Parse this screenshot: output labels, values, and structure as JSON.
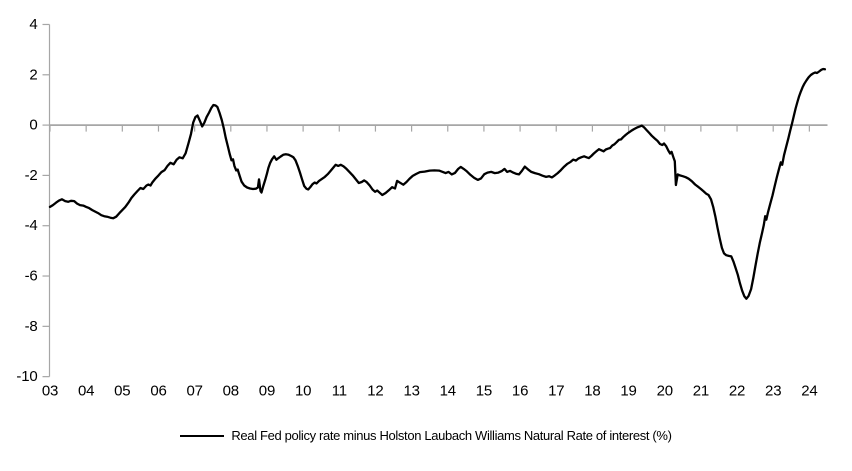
{
  "chart": {
    "legend_label": "Real Fed policy rate minus Holston Laubach Williams Natural Rate of interest (%)",
    "colors": {
      "line": "#000000",
      "axis": "#a6a6a6",
      "text": "#000000",
      "background": "#ffffff"
    },
    "y_axis": {
      "ticks": [
        4,
        2,
        0,
        -2,
        -4,
        -6,
        -8,
        -10
      ]
    },
    "x_axis": {
      "labels": [
        "03",
        "04",
        "05",
        "06",
        "07",
        "08",
        "09",
        "10",
        "11",
        "12",
        "13",
        "14",
        "15",
        "16",
        "17",
        "18",
        "19",
        "20",
        "21",
        "22",
        "23",
        "24"
      ]
    }
  },
  "chart_data": {
    "type": "line",
    "title": "",
    "xlabel": "",
    "ylabel": "",
    "xlim": [
      2003,
      2024.5
    ],
    "ylim": [
      -10,
      4
    ],
    "grid": "zero-line-only",
    "legend_position": "bottom-center",
    "series": [
      {
        "name": "Real Fed policy rate minus Holston Laubach Williams Natural Rate of interest (%)",
        "x": [
          2003.0,
          2003.08,
          2003.17,
          2003.25,
          2003.33,
          2003.42,
          2003.5,
          2003.58,
          2003.67,
          2003.75,
          2003.83,
          2003.92,
          2004.0,
          2004.08,
          2004.17,
          2004.25,
          2004.33,
          2004.42,
          2004.5,
          2004.58,
          2004.67,
          2004.75,
          2004.83,
          2004.92,
          2005.0,
          2005.08,
          2005.17,
          2005.25,
          2005.33,
          2005.42,
          2005.5,
          2005.58,
          2005.67,
          2005.72,
          2005.78,
          2005.83,
          2005.92,
          2006.0,
          2006.08,
          2006.17,
          2006.25,
          2006.33,
          2006.42,
          2006.5,
          2006.58,
          2006.67,
          2006.75,
          2006.83,
          2006.9,
          2006.96,
          2007.02,
          2007.08,
          2007.15,
          2007.21,
          2007.27,
          2007.33,
          2007.4,
          2007.46,
          2007.52,
          2007.58,
          2007.63,
          2007.69,
          2007.75,
          2007.81,
          2007.86,
          2007.92,
          2007.97,
          2008.02,
          2008.06,
          2008.1,
          2008.15,
          2008.19,
          2008.24,
          2008.3,
          2008.37,
          2008.45,
          2008.53,
          2008.61,
          2008.69,
          2008.75,
          2008.78,
          2008.82,
          2008.85,
          2008.9,
          2008.95,
          2009.0,
          2009.04,
          2009.09,
          2009.14,
          2009.2,
          2009.26,
          2009.31,
          2009.38,
          2009.45,
          2009.52,
          2009.6,
          2009.67,
          2009.73,
          2009.79,
          2009.85,
          2009.91,
          2009.97,
          2010.03,
          2010.09,
          2010.14,
          2010.2,
          2010.26,
          2010.32,
          2010.37,
          2010.44,
          2010.52,
          2010.6,
          2010.68,
          2010.76,
          2010.84,
          2010.9,
          2010.97,
          2011.04,
          2011.12,
          2011.2,
          2011.28,
          2011.37,
          2011.46,
          2011.54,
          2011.62,
          2011.69,
          2011.76,
          2011.84,
          2011.92,
          2011.99,
          2012.05,
          2012.12,
          2012.19,
          2012.28,
          2012.37,
          2012.46,
          2012.54,
          2012.6,
          2012.68,
          2012.77,
          2012.86,
          2012.94,
          2013.03,
          2013.13,
          2013.23,
          2013.36,
          2013.5,
          2013.63,
          2013.76,
          2013.86,
          2013.94,
          2014.02,
          2014.11,
          2014.2,
          2014.29,
          2014.36,
          2014.44,
          2014.53,
          2014.63,
          2014.73,
          2014.83,
          2014.92,
          2015.01,
          2015.1,
          2015.2,
          2015.3,
          2015.4,
          2015.5,
          2015.57,
          2015.64,
          2015.72,
          2015.81,
          2015.9,
          2015.97,
          2016.05,
          2016.13,
          2016.22,
          2016.31,
          2016.41,
          2016.52,
          2016.62,
          2016.72,
          2016.8,
          2016.88,
          2016.96,
          2017.04,
          2017.13,
          2017.22,
          2017.31,
          2017.4,
          2017.47,
          2017.54,
          2017.61,
          2017.69,
          2017.77,
          2017.84,
          2017.9,
          2017.97,
          2018.04,
          2018.11,
          2018.18,
          2018.25,
          2018.31,
          2018.37,
          2018.43,
          2018.49,
          2018.55,
          2018.61,
          2018.67,
          2018.73,
          2018.79,
          2018.85,
          2018.92,
          2018.99,
          2019.07,
          2019.15,
          2019.23,
          2019.31,
          2019.37,
          2019.43,
          2019.5,
          2019.57,
          2019.64,
          2019.72,
          2019.8,
          2019.87,
          2019.93,
          2019.98,
          2020.04,
          2020.1,
          2020.15,
          2020.19,
          2020.24,
          2020.28,
          2020.31,
          2020.36,
          2020.42,
          2020.5,
          2020.58,
          2020.66,
          2020.75,
          2020.84,
          2020.92,
          2021.0,
          2021.08,
          2021.15,
          2021.21,
          2021.28,
          2021.34,
          2021.4,
          2021.46,
          2021.52,
          2021.58,
          2021.64,
          2021.7,
          2021.77,
          2021.84,
          2021.9,
          2021.96,
          2022.02,
          2022.08,
          2022.14,
          2022.2,
          2022.26,
          2022.32,
          2022.39,
          2022.45,
          2022.51,
          2022.57,
          2022.63,
          2022.69,
          2022.74,
          2022.78,
          2022.81,
          2022.86,
          2022.92,
          2022.98,
          2023.04,
          2023.1,
          2023.16,
          2023.21,
          2023.25,
          2023.3,
          2023.36,
          2023.42,
          2023.47,
          2023.52,
          2023.57,
          2023.62,
          2023.67,
          2023.71,
          2023.76,
          2023.81,
          2023.86,
          2023.92,
          2023.98,
          2024.04,
          2024.1,
          2024.16,
          2024.21,
          2024.27,
          2024.33,
          2024.38,
          2024.43
        ],
        "y": [
          -3.25,
          -3.18,
          -3.08,
          -3.0,
          -2.95,
          -3.02,
          -3.05,
          -3.01,
          -3.02,
          -3.12,
          -3.18,
          -3.2,
          -3.25,
          -3.3,
          -3.38,
          -3.44,
          -3.5,
          -3.58,
          -3.62,
          -3.64,
          -3.68,
          -3.7,
          -3.64,
          -3.5,
          -3.38,
          -3.26,
          -3.08,
          -2.9,
          -2.76,
          -2.62,
          -2.5,
          -2.54,
          -2.4,
          -2.36,
          -2.4,
          -2.28,
          -2.12,
          -2.0,
          -1.87,
          -1.79,
          -1.62,
          -1.5,
          -1.56,
          -1.38,
          -1.28,
          -1.32,
          -1.12,
          -0.72,
          -0.35,
          0.1,
          0.32,
          0.38,
          0.15,
          -0.05,
          0.1,
          0.32,
          0.5,
          0.68,
          0.8,
          0.78,
          0.72,
          0.48,
          0.2,
          -0.15,
          -0.5,
          -0.85,
          -1.15,
          -1.4,
          -1.36,
          -1.62,
          -1.8,
          -1.77,
          -2.0,
          -2.25,
          -2.4,
          -2.48,
          -2.52,
          -2.54,
          -2.53,
          -2.48,
          -2.16,
          -2.62,
          -2.68,
          -2.42,
          -2.18,
          -1.92,
          -1.7,
          -1.5,
          -1.36,
          -1.24,
          -1.38,
          -1.32,
          -1.25,
          -1.18,
          -1.16,
          -1.18,
          -1.23,
          -1.28,
          -1.4,
          -1.62,
          -1.88,
          -2.15,
          -2.42,
          -2.53,
          -2.56,
          -2.46,
          -2.35,
          -2.28,
          -2.32,
          -2.22,
          -2.14,
          -2.06,
          -1.95,
          -1.82,
          -1.68,
          -1.58,
          -1.62,
          -1.58,
          -1.64,
          -1.74,
          -1.86,
          -2.0,
          -2.16,
          -2.3,
          -2.26,
          -2.2,
          -2.27,
          -2.4,
          -2.56,
          -2.65,
          -2.6,
          -2.69,
          -2.78,
          -2.7,
          -2.59,
          -2.47,
          -2.52,
          -2.22,
          -2.29,
          -2.37,
          -2.26,
          -2.14,
          -2.02,
          -1.94,
          -1.87,
          -1.85,
          -1.81,
          -1.8,
          -1.81,
          -1.86,
          -1.91,
          -1.86,
          -1.96,
          -1.9,
          -1.74,
          -1.66,
          -1.74,
          -1.84,
          -1.98,
          -2.1,
          -2.18,
          -2.12,
          -1.95,
          -1.89,
          -1.86,
          -1.91,
          -1.89,
          -1.82,
          -1.74,
          -1.86,
          -1.82,
          -1.89,
          -1.94,
          -1.96,
          -1.82,
          -1.65,
          -1.76,
          -1.86,
          -1.91,
          -1.95,
          -2.01,
          -2.06,
          -2.03,
          -2.08,
          -2.0,
          -1.91,
          -1.79,
          -1.65,
          -1.54,
          -1.46,
          -1.37,
          -1.41,
          -1.33,
          -1.28,
          -1.24,
          -1.28,
          -1.31,
          -1.23,
          -1.13,
          -1.04,
          -0.96,
          -1.0,
          -1.04,
          -0.97,
          -0.94,
          -0.91,
          -0.81,
          -0.76,
          -0.68,
          -0.59,
          -0.57,
          -0.48,
          -0.39,
          -0.31,
          -0.23,
          -0.16,
          -0.1,
          -0.05,
          -0.02,
          -0.09,
          -0.2,
          -0.31,
          -0.42,
          -0.53,
          -0.63,
          -0.75,
          -0.79,
          -0.73,
          -0.84,
          -1.01,
          -1.13,
          -1.06,
          -1.28,
          -1.44,
          -2.38,
          -1.96,
          -2.0,
          -2.03,
          -2.07,
          -2.13,
          -2.23,
          -2.36,
          -2.45,
          -2.54,
          -2.64,
          -2.73,
          -2.78,
          -2.95,
          -3.25,
          -3.62,
          -4.08,
          -4.5,
          -4.88,
          -5.1,
          -5.17,
          -5.2,
          -5.22,
          -5.42,
          -5.68,
          -5.95,
          -6.28,
          -6.58,
          -6.8,
          -6.9,
          -6.79,
          -6.52,
          -6.08,
          -5.58,
          -5.1,
          -4.68,
          -4.3,
          -3.97,
          -3.62,
          -3.76,
          -3.45,
          -3.12,
          -2.8,
          -2.44,
          -2.08,
          -1.74,
          -1.48,
          -1.58,
          -1.2,
          -0.86,
          -0.52,
          -0.22,
          0.06,
          0.36,
          0.66,
          0.92,
          1.12,
          1.32,
          1.5,
          1.64,
          1.78,
          1.9,
          1.99,
          2.05,
          2.09,
          2.07,
          2.13,
          2.2,
          2.23,
          2.22
        ]
      }
    ]
  }
}
